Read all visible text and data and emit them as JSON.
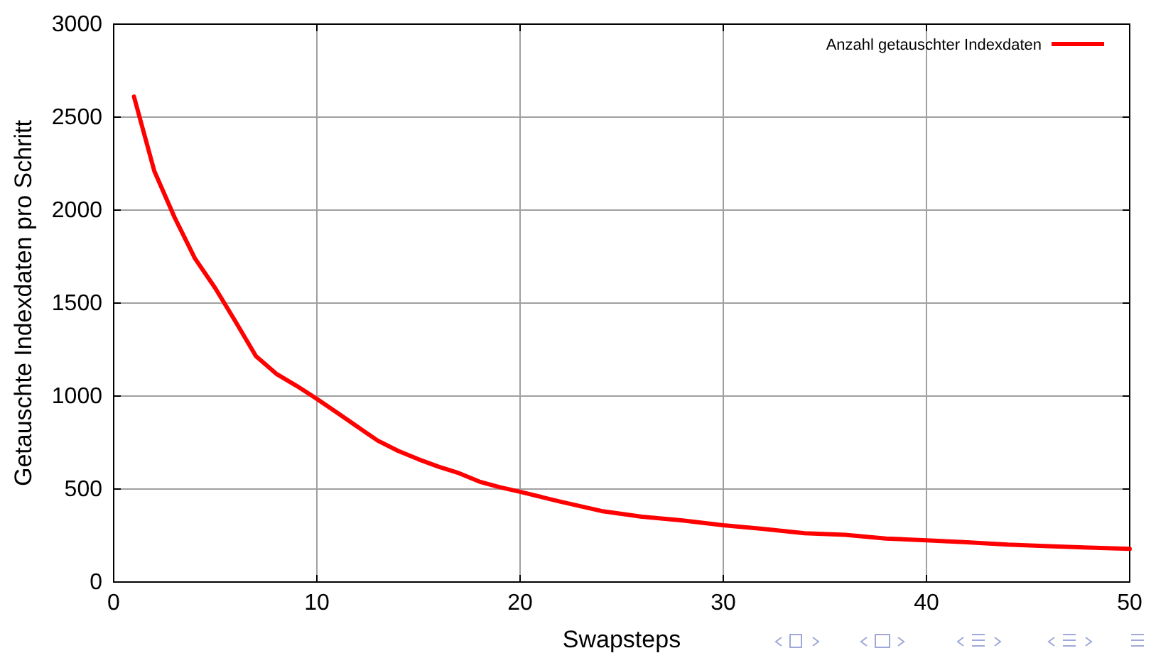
{
  "chart_data": {
    "type": "line",
    "xlabel": "Swapsteps",
    "ylabel": "Getauschte Indexdaten pro Schritt",
    "xlim": [
      0,
      50
    ],
    "xticks": [
      0,
      10,
      20,
      30,
      40,
      50
    ],
    "ylim": [
      0,
      3000
    ],
    "yticks": [
      0,
      500,
      1000,
      1500,
      2000,
      2500,
      3000
    ],
    "grid": true,
    "legend": "top right",
    "line_style": "solid",
    "marker": "none",
    "series": [
      {
        "name": "Anzahl getauschter Indexdaten",
        "color": "#ff0000",
        "x": [
          1,
          2,
          3,
          4,
          5,
          6,
          7,
          8,
          9,
          10,
          11,
          12,
          13,
          14,
          15,
          16,
          17,
          18,
          19,
          20,
          22,
          24,
          26,
          28,
          30,
          32,
          34,
          36,
          38,
          40,
          42,
          44,
          46,
          48,
          50
        ],
        "values": [
          2610,
          2210,
          1960,
          1740,
          1580,
          1400,
          1215,
          1120,
          1055,
          985,
          910,
          835,
          760,
          705,
          660,
          620,
          585,
          540,
          510,
          485,
          432,
          382,
          351,
          331,
          305,
          285,
          262,
          254,
          234,
          224,
          214,
          201,
          193,
          185,
          178
        ]
      }
    ]
  }
}
